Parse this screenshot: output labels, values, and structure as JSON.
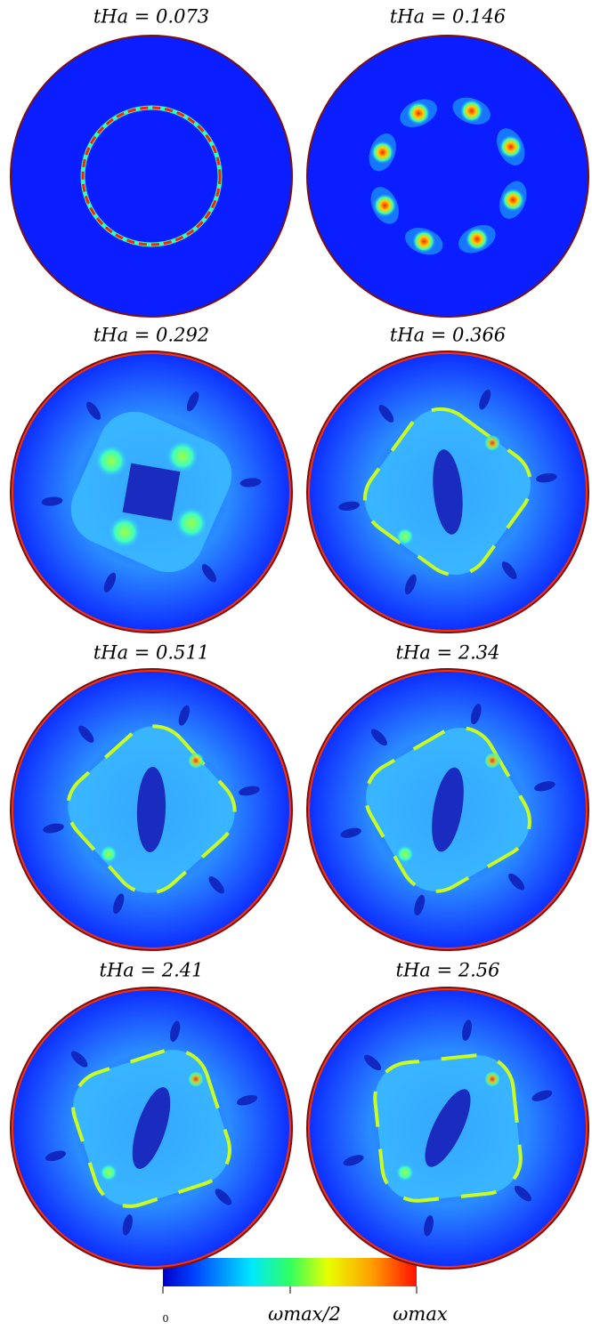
{
  "panels": [
    {
      "label": "tHa = 0.073"
    },
    {
      "label": "tHa = 0.146"
    },
    {
      "label": "tHa = 0.292"
    },
    {
      "label": "tHa = 0.366"
    },
    {
      "label": "tHa = 0.511"
    },
    {
      "label": "tHa = 2.34"
    },
    {
      "label": "tHa = 2.41"
    },
    {
      "label": "tHa = 2.56"
    }
  ],
  "colorbar": {
    "labels": [
      "0",
      "ωmax/2",
      "ωmax"
    ]
  }
}
